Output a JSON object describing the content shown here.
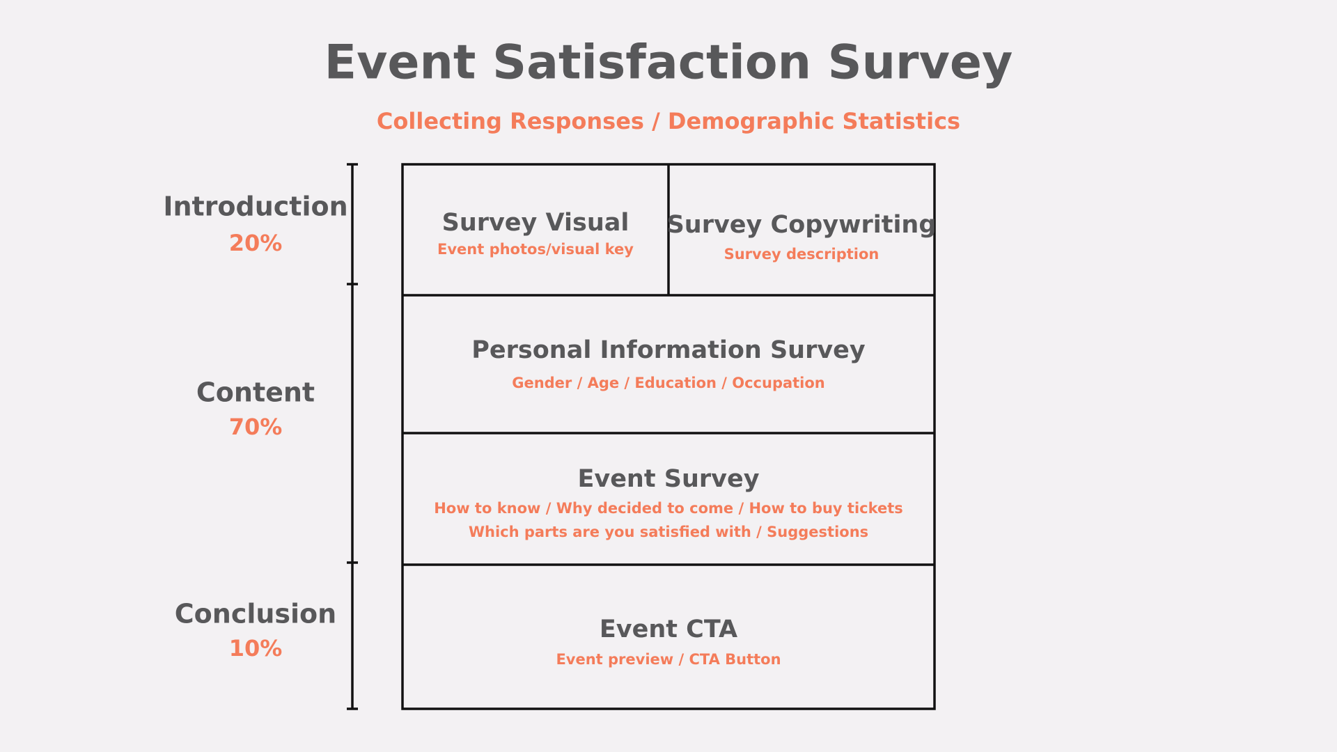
{
  "header": {
    "title": "Event Satisfaction Survey",
    "subtitle": "Collecting Responses / Demographic Statistics"
  },
  "sections": [
    {
      "label": "Introduction",
      "percent": "20%"
    },
    {
      "label": "Content",
      "percent": "70%"
    },
    {
      "label": "Conclusion",
      "percent": "10%"
    }
  ],
  "blocks": [
    {
      "title": "Survey Visual",
      "lines": [
        "Event photos/visual key"
      ]
    },
    {
      "title": "Survey Copywriting",
      "lines": [
        "Survey description"
      ]
    },
    {
      "title": "Personal Information Survey",
      "lines": [
        "Gender / Age / Education / Occupation"
      ]
    },
    {
      "title": "Event Survey",
      "lines": [
        "How to know / Why decided to come / How to buy tickets",
        "Which parts are you satisfied with / Suggestions"
      ]
    },
    {
      "title": "Event CTA",
      "lines": [
        "Event preview / CTA Button"
      ]
    }
  ]
}
